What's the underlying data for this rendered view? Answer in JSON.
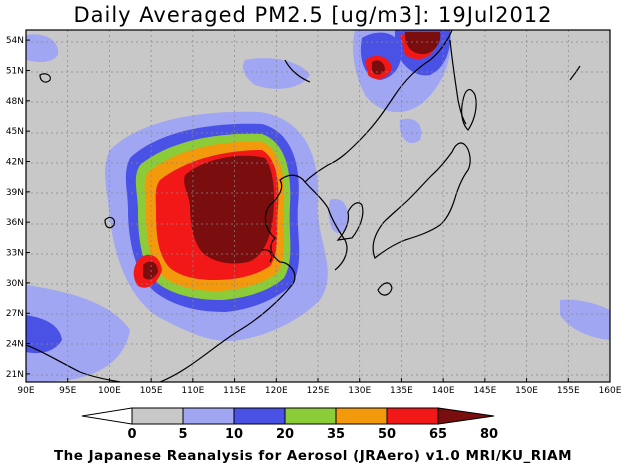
{
  "title": "Daily Averaged PM2.5 [ug/m3]: 19Jul2012",
  "credit": "The Japanese Reanalysis for Aerosol (JRAero) v1.0 MRI/KU_RIAM",
  "map": {
    "lon_ticks": [
      "90E",
      "95E",
      "100E",
      "105E",
      "110E",
      "115E",
      "120E",
      "125E",
      "130E",
      "135E",
      "140E",
      "145E",
      "150E",
      "155E",
      "160E"
    ],
    "lat_ticks": [
      "21N",
      "24N",
      "27N",
      "30N",
      "33N",
      "36N",
      "39N",
      "42N",
      "45N",
      "48N",
      "51N",
      "54N"
    ]
  },
  "colorbar": {
    "labels": [
      "0",
      "5",
      "10",
      "20",
      "35",
      "50",
      "65",
      "80"
    ],
    "colors": [
      "#ffffff",
      "#c8c8c8",
      "#a0a6f2",
      "#4a52e6",
      "#8ccc38",
      "#f29a0c",
      "#f21818",
      "#7a0d0d"
    ]
  }
}
